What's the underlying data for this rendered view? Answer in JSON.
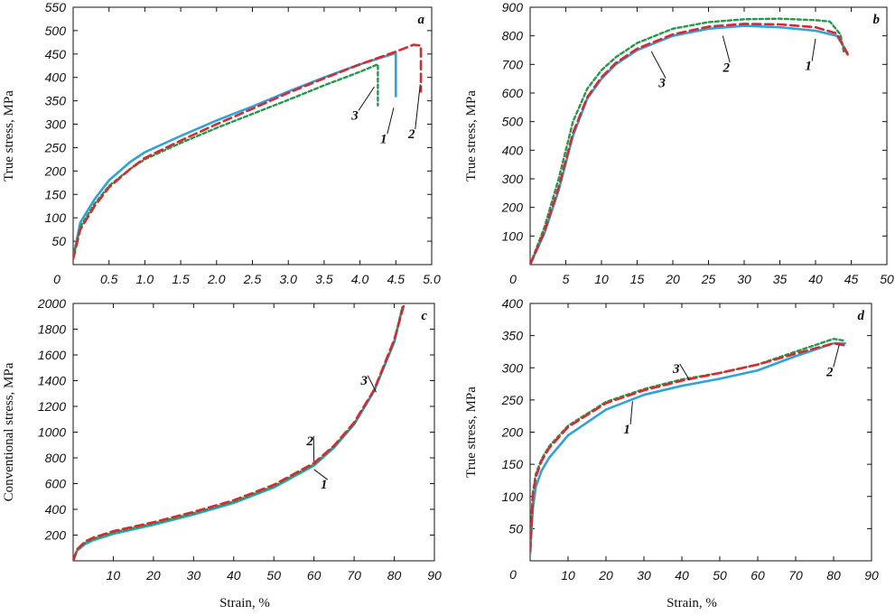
{
  "colors": {
    "s1": "#2aa3de",
    "s2": "#e0262b",
    "s3": "#1f9a4a"
  },
  "chart_data": [
    {
      "type": "line",
      "panel_label": "a",
      "xlabel": "",
      "ylabel": "True stress, MPa",
      "xlim": [
        0,
        5.0
      ],
      "ylim": [
        0,
        550
      ],
      "x_ticks": [
        0.5,
        1.0,
        1.5,
        2.0,
        2.5,
        3.0,
        3.5,
        4.0,
        4.5,
        5.0
      ],
      "x_tick_labels": [
        "0.5",
        "1.0",
        "1.5",
        "2.0",
        "2.5",
        "3.0",
        "3.5",
        "4.0",
        "4.5",
        "5.0"
      ],
      "y_ticks": [
        50,
        100,
        150,
        200,
        250,
        300,
        350,
        400,
        450,
        500,
        550
      ],
      "y_tick_labels": [
        "50",
        "100",
        "150",
        "200",
        "250",
        "300",
        "350",
        "400",
        "450",
        "500",
        "550"
      ],
      "origin_label": "0",
      "series": [
        {
          "name": "1",
          "x": [
            0,
            0.1,
            0.3,
            0.5,
            0.8,
            1.0,
            1.5,
            2.0,
            2.5,
            3.0,
            3.5,
            4.0,
            4.5,
            4.5
          ],
          "y": [
            15,
            90,
            140,
            180,
            220,
            240,
            275,
            308,
            338,
            370,
            400,
            428,
            452,
            360
          ]
        },
        {
          "name": "2",
          "x": [
            0,
            0.1,
            0.3,
            0.5,
            0.8,
            1.0,
            1.5,
            2.0,
            2.5,
            3.0,
            3.5,
            4.0,
            4.5,
            4.75,
            4.85,
            4.85
          ],
          "y": [
            12,
            75,
            125,
            165,
            205,
            228,
            265,
            300,
            333,
            367,
            398,
            428,
            455,
            470,
            468,
            370
          ]
        },
        {
          "name": "3",
          "x": [
            0,
            0.1,
            0.3,
            0.5,
            0.8,
            1.0,
            1.5,
            2.0,
            2.5,
            3.0,
            3.5,
            4.0,
            4.25,
            4.25
          ],
          "y": [
            15,
            80,
            130,
            168,
            205,
            225,
            260,
            292,
            322,
            352,
            383,
            412,
            428,
            340
          ]
        }
      ],
      "labels": [
        {
          "text": "1",
          "x": 4.33,
          "y": 260,
          "tx": 4.47,
          "ty": 335
        },
        {
          "text": "2",
          "x": 4.72,
          "y": 270,
          "tx": 4.84,
          "ty": 385
        },
        {
          "text": "3",
          "x": 3.93,
          "y": 310,
          "tx": 4.2,
          "ty": 380
        }
      ]
    },
    {
      "type": "line",
      "panel_label": "b",
      "xlabel": "",
      "ylabel": "True stress, MPa",
      "xlim": [
        0,
        50
      ],
      "ylim": [
        0,
        900
      ],
      "x_ticks": [
        5,
        10,
        15,
        20,
        25,
        30,
        35,
        40,
        45,
        50
      ],
      "x_tick_labels": [
        "5",
        "10",
        "15",
        "20",
        "25",
        "30",
        "35",
        "40",
        "45",
        "50"
      ],
      "y_ticks": [
        100,
        200,
        300,
        400,
        500,
        600,
        700,
        800,
        900
      ],
      "y_tick_labels": [
        "100",
        "200",
        "300",
        "400",
        "500",
        "600",
        "700",
        "800",
        "900"
      ],
      "origin_label": "0",
      "series": [
        {
          "name": "1",
          "x": [
            0,
            2,
            4,
            6,
            8,
            10,
            12,
            15,
            20,
            25,
            30,
            35,
            40,
            43,
            44.5
          ],
          "y": [
            0,
            110,
            260,
            450,
            580,
            650,
            700,
            750,
            800,
            825,
            835,
            830,
            818,
            800,
            740
          ]
        },
        {
          "name": "2",
          "x": [
            0,
            2,
            4,
            6,
            8,
            10,
            12,
            15,
            20,
            25,
            30,
            35,
            40,
            43,
            44.5
          ],
          "y": [
            0,
            115,
            270,
            460,
            585,
            655,
            705,
            755,
            805,
            832,
            842,
            840,
            830,
            808,
            735
          ]
        },
        {
          "name": "3",
          "x": [
            0,
            2,
            4,
            6,
            8,
            10,
            12,
            15,
            20,
            25,
            30,
            35,
            40,
            42,
            43.5,
            44
          ],
          "y": [
            0,
            130,
            300,
            500,
            615,
            680,
            725,
            775,
            825,
            848,
            858,
            860,
            855,
            850,
            805,
            740
          ]
        }
      ],
      "labels": [
        {
          "text": "1",
          "x": 39,
          "y": 680,
          "tx": 40,
          "ty": 790
        },
        {
          "text": "2",
          "x": 27.5,
          "y": 675,
          "tx": 27,
          "ty": 800
        },
        {
          "text": "3",
          "x": 18.5,
          "y": 620,
          "tx": 17,
          "ty": 745
        }
      ]
    },
    {
      "type": "line",
      "panel_label": "c",
      "xlabel": "Strain, %",
      "ylabel": "Conventional stress, MPa",
      "xlim": [
        0,
        90
      ],
      "ylim": [
        0,
        2000
      ],
      "x_ticks": [
        10,
        20,
        30,
        40,
        50,
        60,
        70,
        80,
        90
      ],
      "x_tick_labels": [
        "10",
        "20",
        "30",
        "40",
        "50",
        "60",
        "70",
        "80",
        "90"
      ],
      "y_ticks": [
        200,
        400,
        600,
        800,
        1000,
        1200,
        1400,
        1600,
        1800,
        2000
      ],
      "y_tick_labels": [
        "200",
        "400",
        "600",
        "800",
        "1000",
        "1200",
        "1400",
        "1600",
        "1800",
        "2000"
      ],
      "origin_label": "",
      "series": [
        {
          "name": "1",
          "x": [
            0,
            1,
            3,
            5,
            10,
            20,
            30,
            40,
            50,
            60,
            65,
            70,
            75,
            80,
            82
          ],
          "y": [
            0,
            80,
            130,
            160,
            210,
            280,
            360,
            450,
            570,
            740,
            880,
            1060,
            1320,
            1700,
            1960
          ]
        },
        {
          "name": "2",
          "x": [
            0,
            1,
            3,
            5,
            10,
            20,
            30,
            40,
            50,
            60,
            65,
            70,
            75,
            80,
            82.5
          ],
          "y": [
            0,
            90,
            150,
            180,
            230,
            300,
            380,
            470,
            590,
            760,
            895,
            1075,
            1330,
            1720,
            2000
          ]
        },
        {
          "name": "3",
          "x": [
            0,
            1,
            3,
            5,
            10,
            20,
            30,
            40,
            50,
            60,
            65,
            70,
            75,
            80,
            82
          ],
          "y": [
            0,
            85,
            140,
            170,
            220,
            290,
            370,
            460,
            580,
            750,
            890,
            1065,
            1325,
            1710,
            1970
          ]
        }
      ],
      "labels": [
        {
          "text": "1",
          "x": 62.5,
          "y": 560,
          "tx": 60,
          "ty": 710
        },
        {
          "text": "2",
          "x": 59,
          "y": 900,
          "tx": 60,
          "ty": 770
        },
        {
          "text": "3",
          "x": 72.5,
          "y": 1370,
          "tx": 75.5,
          "ty": 1310
        }
      ]
    },
    {
      "type": "line",
      "panel_label": "d",
      "xlabel": "Strain, %",
      "ylabel": "True stress, MPa",
      "xlim": [
        0,
        90
      ],
      "ylim": [
        0,
        400
      ],
      "x_ticks": [
        10,
        20,
        30,
        40,
        50,
        60,
        70,
        80,
        90
      ],
      "x_tick_labels": [
        "10",
        "20",
        "30",
        "40",
        "50",
        "60",
        "70",
        "80",
        "90"
      ],
      "y_ticks": [
        50,
        100,
        150,
        200,
        250,
        300,
        350,
        400
      ],
      "y_tick_labels": [
        "50",
        "100",
        "150",
        "200",
        "250",
        "300",
        "350",
        "400"
      ],
      "origin_label": "0",
      "series": [
        {
          "name": "1",
          "x": [
            0,
            0.7,
            1.5,
            3,
            5,
            10,
            20,
            30,
            40,
            50,
            60,
            70,
            80,
            83
          ],
          "y": [
            10,
            80,
            115,
            140,
            160,
            195,
            235,
            258,
            272,
            283,
            296,
            318,
            338,
            338
          ]
        },
        {
          "name": "2",
          "x": [
            0,
            0.7,
            1.5,
            3,
            5,
            10,
            20,
            30,
            40,
            50,
            60,
            70,
            80,
            83
          ],
          "y": [
            15,
            100,
            130,
            155,
            175,
            208,
            245,
            265,
            280,
            292,
            305,
            322,
            338,
            335
          ]
        },
        {
          "name": "3",
          "x": [
            0,
            0.7,
            1.5,
            3,
            5,
            10,
            20,
            30,
            40,
            50,
            60,
            70,
            80,
            83
          ],
          "y": [
            15,
            105,
            135,
            158,
            178,
            210,
            247,
            267,
            282,
            292,
            305,
            325,
            345,
            342
          ]
        }
      ],
      "labels": [
        {
          "text": "1",
          "x": 25.5,
          "y": 198,
          "tx": 27,
          "ty": 248
        },
        {
          "text": "2",
          "x": 79,
          "y": 287,
          "tx": 81.5,
          "ty": 336
        },
        {
          "text": "3",
          "x": 38.5,
          "y": 292,
          "tx": 42,
          "ty": 281
        }
      ]
    }
  ]
}
